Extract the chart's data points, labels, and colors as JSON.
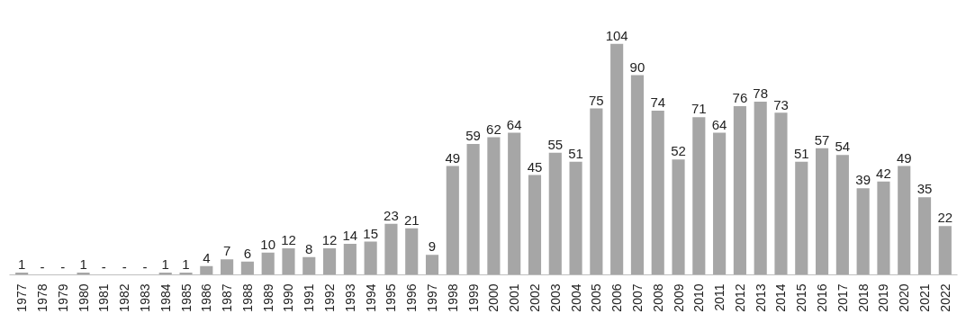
{
  "chart_data": {
    "type": "bar",
    "categories": [
      "1977",
      "1978",
      "1979",
      "1980",
      "1981",
      "1982",
      "1983",
      "1984",
      "1985",
      "1986",
      "1987",
      "1988",
      "1989",
      "1990",
      "1991",
      "1992",
      "1993",
      "1994",
      "1995",
      "1996",
      "1997",
      "1998",
      "1999",
      "2000",
      "2001",
      "2002",
      "2003",
      "2004",
      "2005",
      "2006",
      "2007",
      "2008",
      "2009",
      "2010",
      "2011",
      "2012",
      "2013",
      "2014",
      "2015",
      "2016",
      "2017",
      "2018",
      "2019",
      "2020",
      "2021",
      "2022"
    ],
    "values": [
      1,
      null,
      null,
      1,
      null,
      null,
      null,
      1,
      1,
      4,
      7,
      6,
      10,
      12,
      8,
      12,
      14,
      15,
      23,
      21,
      9,
      49,
      59,
      62,
      64,
      45,
      55,
      51,
      75,
      104,
      90,
      74,
      52,
      71,
      64,
      76,
      78,
      73,
      51,
      57,
      54,
      39,
      42,
      49,
      35,
      22
    ],
    "value_labels": [
      "1",
      "-",
      "-",
      "1",
      "-",
      "-",
      "-",
      "1",
      "1",
      "4",
      "7",
      "6",
      "10",
      "12",
      "8",
      "12",
      "14",
      "15",
      "23",
      "21",
      "9",
      "49",
      "59",
      "62",
      "64",
      "45",
      "55",
      "51",
      "75",
      "104",
      "90",
      "74",
      "52",
      "71",
      "64",
      "76",
      "78",
      "73",
      "51",
      "57",
      "54",
      "39",
      "42",
      "49",
      "35",
      "22"
    ],
    "color": "#a6a6a6",
    "grid": false,
    "tick_labels": "x"
  }
}
